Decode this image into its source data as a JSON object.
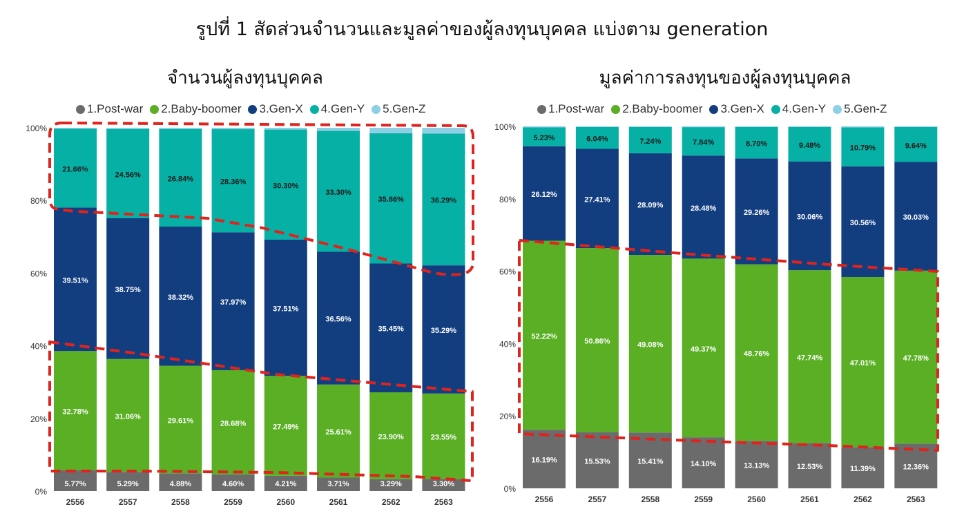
{
  "title": "รูปที่ 1 สัดส่วนจำนวนและมูลค่าของผู้ลงทุนบุคคล แบ่งตาม generation",
  "colors": {
    "post_war": "#6b6b6b",
    "baby_boomer": "#5aaf24",
    "gen_x": "#123e80",
    "gen_y": "#07b0a5",
    "gen_z": "#8fcfe6",
    "highlight": "#e0231c"
  },
  "chart_data": [
    {
      "type": "bar",
      "stacked": true,
      "title": "จำนวนผู้ลงทุนบุคคล",
      "categories": [
        "2556",
        "2557",
        "2558",
        "2559",
        "2560",
        "2561",
        "2562",
        "2563"
      ],
      "yticks": [
        "0%",
        "20%",
        "40%",
        "60%",
        "80%",
        "100%"
      ],
      "ylim": [
        0,
        100
      ],
      "legend_position": "top",
      "series": [
        {
          "name": "1.Post-war",
          "color": "#6b6b6b",
          "values": [
            5.77,
            5.29,
            4.88,
            4.6,
            4.21,
            3.71,
            3.29,
            3.3
          ],
          "labels": [
            "5.77%",
            "5.29%",
            "4.88%",
            "4.60%",
            "4.21%",
            "3.71%",
            "3.29%",
            "3.30%"
          ]
        },
        {
          "name": "2.Baby-boomer",
          "color": "#5aaf24",
          "values": [
            32.78,
            31.06,
            29.61,
            28.68,
            27.49,
            25.61,
            23.9,
            23.55
          ],
          "labels": [
            "32.78%",
            "31.06%",
            "29.61%",
            "28.68%",
            "27.49%",
            "25.61%",
            "23.90%",
            "23.55%"
          ]
        },
        {
          "name": "3.Gen-X",
          "color": "#123e80",
          "values": [
            39.51,
            38.75,
            38.32,
            37.97,
            37.51,
            36.56,
            35.45,
            35.29
          ],
          "labels": [
            "39.51%",
            "38.75%",
            "38.32%",
            "37.97%",
            "37.51%",
            "36.56%",
            "35.45%",
            "35.29%"
          ]
        },
        {
          "name": "4.Gen-Y",
          "color": "#07b0a5",
          "values": [
            21.66,
            24.56,
            26.84,
            28.36,
            30.3,
            33.3,
            35.86,
            36.29
          ],
          "labels": [
            "21.66%",
            "24.56%",
            "26.84%",
            "28.36%",
            "30.30%",
            "33.30%",
            "35.86%",
            "36.29%"
          ]
        },
        {
          "name": "5.Gen-Z",
          "color": "#8fcfe6",
          "values": [
            0.28,
            0.34,
            0.35,
            0.39,
            0.49,
            0.82,
            1.5,
            1.57
          ],
          "labels": [
            "",
            "",
            "",
            "",
            "",
            "",
            "",
            ""
          ]
        }
      ]
    },
    {
      "type": "bar",
      "stacked": true,
      "title": "มูลค่าการลงทุนของผู้ลงทุนบุคคล",
      "categories": [
        "2556",
        "2557",
        "2558",
        "2559",
        "2560",
        "2561",
        "2562",
        "2563"
      ],
      "yticks": [
        "0%",
        "20%",
        "40%",
        "60%",
        "80%",
        "100%"
      ],
      "ylim": [
        0,
        100
      ],
      "legend_position": "top",
      "series": [
        {
          "name": "1.Post-war",
          "color": "#6b6b6b",
          "values": [
            16.19,
            15.53,
            15.41,
            14.1,
            13.13,
            12.53,
            11.39,
            12.36
          ],
          "labels": [
            "16.19%",
            "15.53%",
            "15.41%",
            "14.10%",
            "13.13%",
            "12.53%",
            "11.39%",
            "12.36%"
          ]
        },
        {
          "name": "2.Baby-boomer",
          "color": "#5aaf24",
          "values": [
            52.22,
            50.86,
            49.08,
            49.37,
            48.76,
            47.74,
            47.01,
            47.78
          ],
          "labels": [
            "52.22%",
            "50.86%",
            "49.08%",
            "49.37%",
            "48.76%",
            "47.74%",
            "47.01%",
            "47.78%"
          ]
        },
        {
          "name": "3.Gen-X",
          "color": "#123e80",
          "values": [
            26.12,
            27.41,
            28.09,
            28.48,
            29.26,
            30.06,
            30.56,
            30.03
          ],
          "labels": [
            "26.12%",
            "27.41%",
            "28.09%",
            "28.48%",
            "29.26%",
            "30.06%",
            "30.56%",
            "30.03%"
          ]
        },
        {
          "name": "4.Gen-Y",
          "color": "#07b0a5",
          "values": [
            5.23,
            6.04,
            7.24,
            7.84,
            8.7,
            9.48,
            10.79,
            9.64
          ],
          "labels": [
            "5.23%",
            "6.04%",
            "7.24%",
            "7.84%",
            "8.70%",
            "9.48%",
            "10.79%",
            "9.64%"
          ]
        },
        {
          "name": "5.Gen-Z",
          "color": "#8fcfe6",
          "values": [
            0.24,
            0.16,
            0.18,
            0.21,
            0.15,
            0.19,
            0.25,
            0.19
          ],
          "labels": [
            "",
            "",
            "",
            "",
            "",
            "",
            "",
            ""
          ]
        }
      ]
    }
  ]
}
